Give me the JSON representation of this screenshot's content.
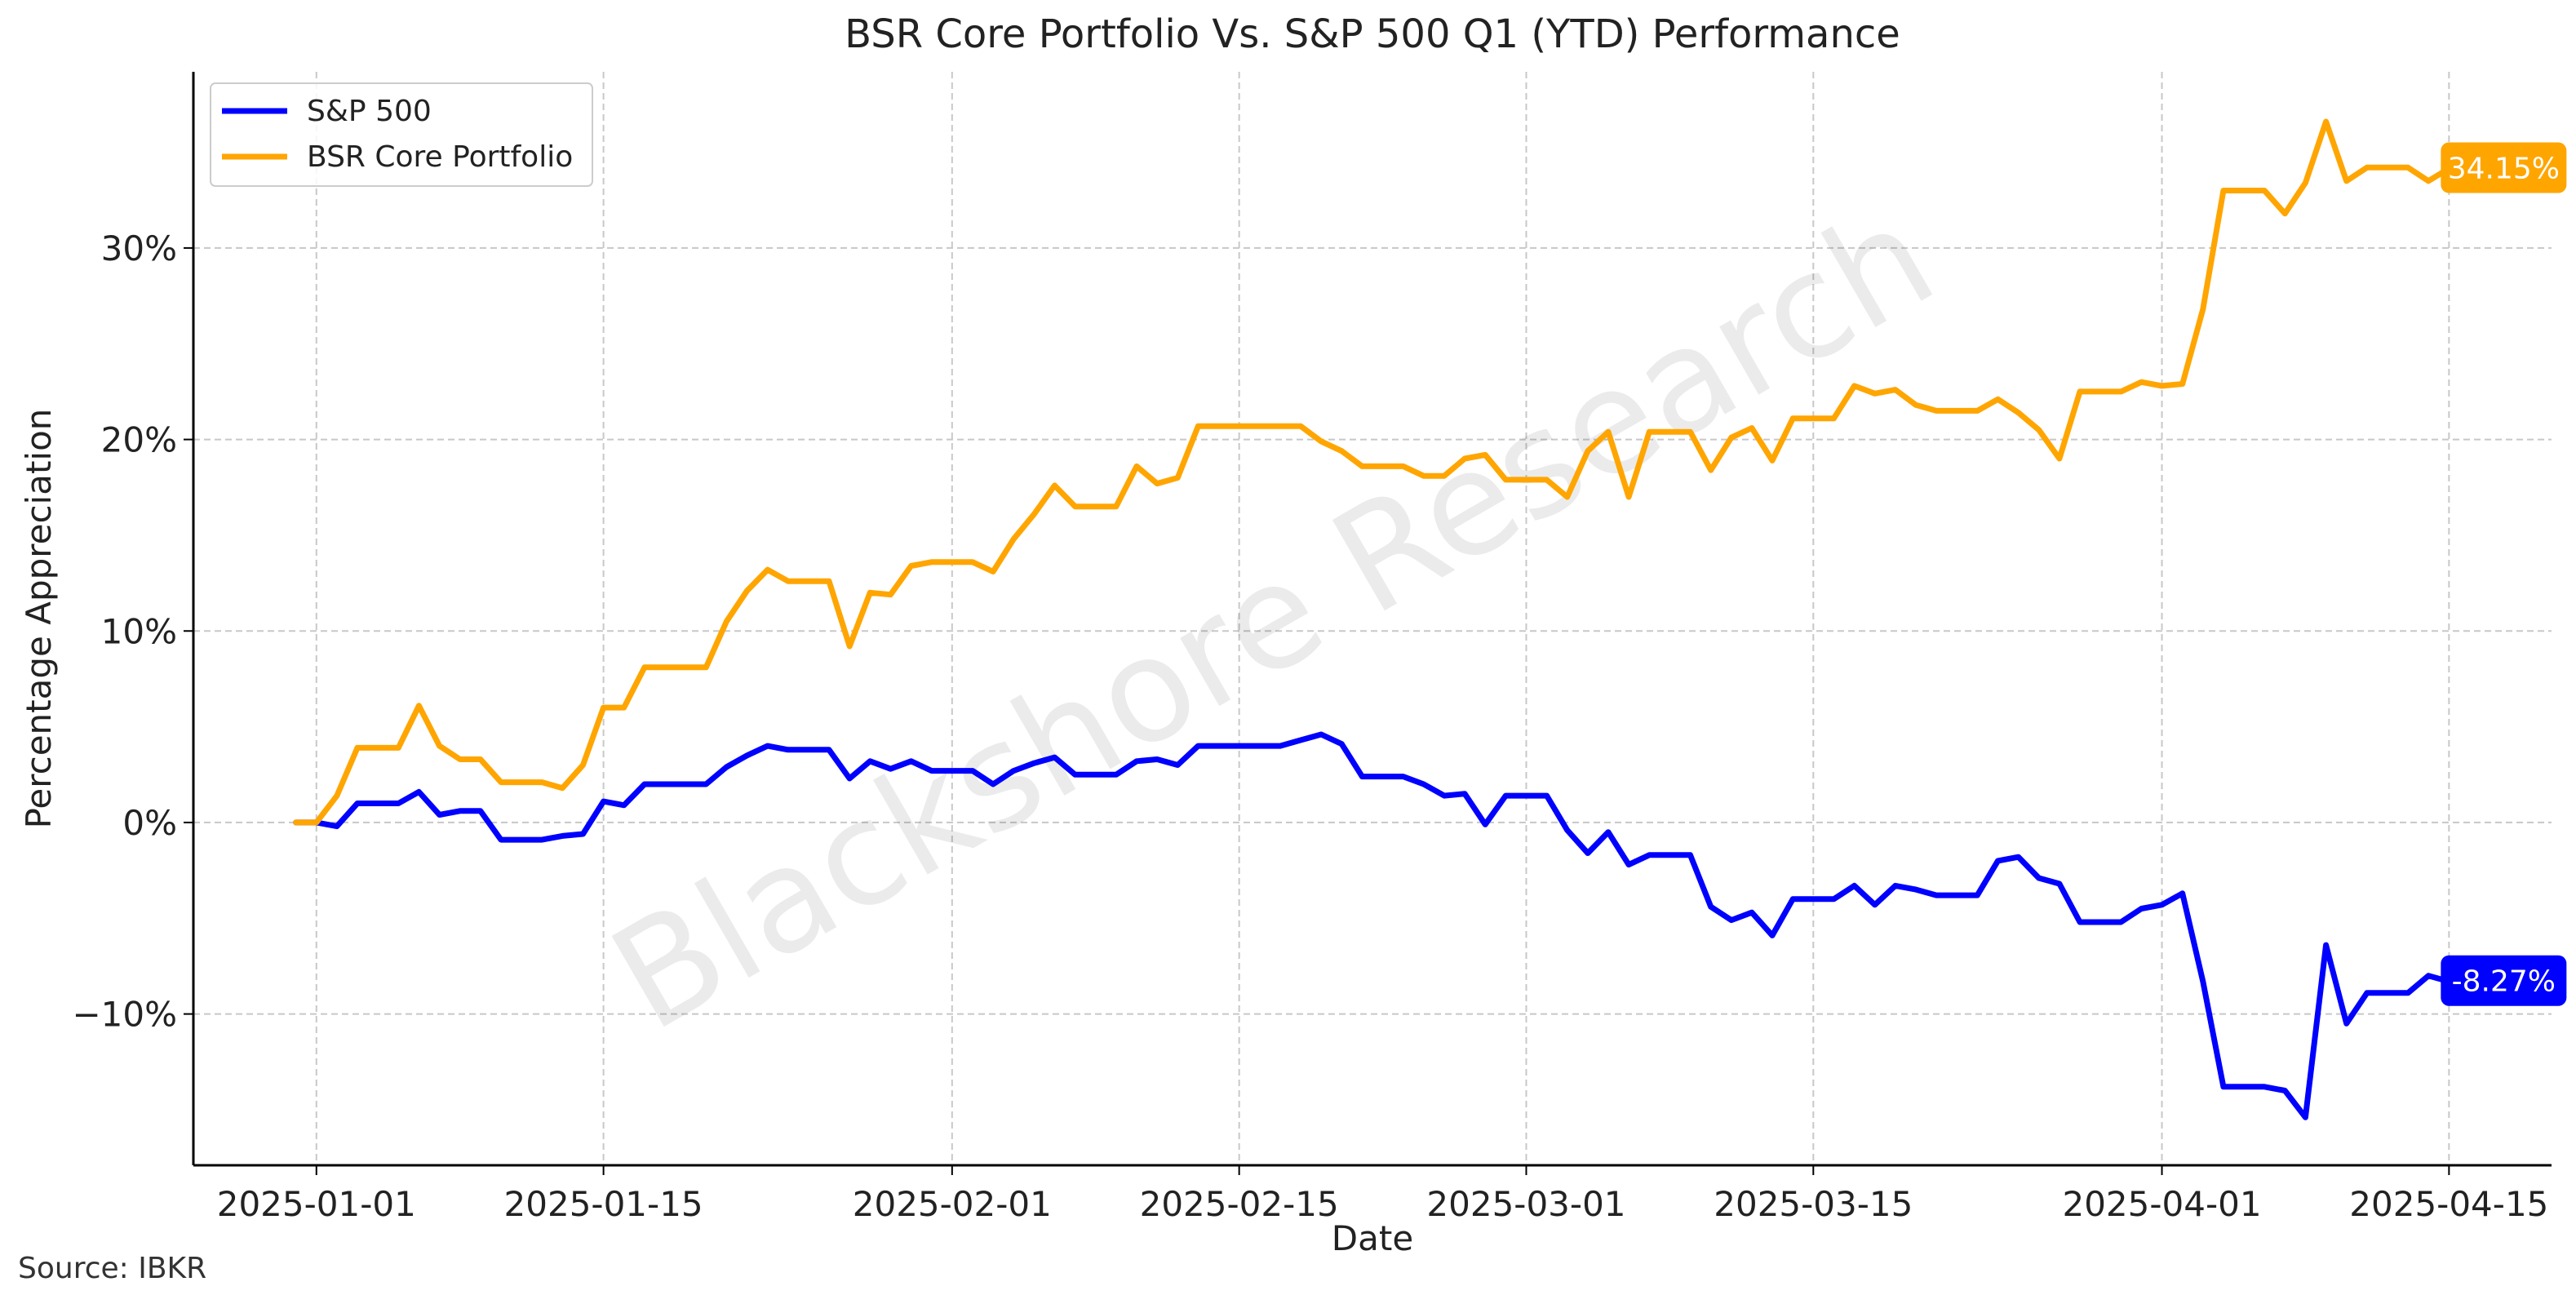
{
  "chart_data": {
    "type": "line",
    "title": "BSR Core Portfolio Vs. S&P 500 Q1 (YTD) Performance",
    "xlabel": "Date",
    "ylabel": "Percentage Appreciation",
    "source_note": "Source: IBKR",
    "watermark": "Blackshore Research",
    "x_ticks": [
      "2025-01-01",
      "2025-01-15",
      "2025-02-01",
      "2025-02-15",
      "2025-03-01",
      "2025-03-15",
      "2025-04-01",
      "2025-04-15"
    ],
    "y_ticks": [
      -10,
      0,
      10,
      20,
      30
    ],
    "y_tick_labels": [
      "−10%",
      "0%",
      "10%",
      "20%",
      "30%"
    ],
    "xlim": [
      "2024-12-26",
      "2025-04-20"
    ],
    "ylim": [
      -17.9,
      39.2
    ],
    "grid": true,
    "legend_position": "top-left",
    "series": [
      {
        "name": "S&P 500",
        "color": "#0000ff",
        "end_label": "-8.27%",
        "points": [
          [
            "2024-12-31",
            0.0
          ],
          [
            "2025-01-01",
            0.0
          ],
          [
            "2025-01-02",
            -0.2
          ],
          [
            "2025-01-03",
            1.0
          ],
          [
            "2025-01-04",
            1.0
          ],
          [
            "2025-01-05",
            1.0
          ],
          [
            "2025-01-06",
            1.6
          ],
          [
            "2025-01-07",
            0.4
          ],
          [
            "2025-01-08",
            0.6
          ],
          [
            "2025-01-09",
            0.6
          ],
          [
            "2025-01-10",
            -0.9
          ],
          [
            "2025-01-11",
            -0.9
          ],
          [
            "2025-01-12",
            -0.9
          ],
          [
            "2025-01-13",
            -0.7
          ],
          [
            "2025-01-14",
            -0.6
          ],
          [
            "2025-01-15",
            1.1
          ],
          [
            "2025-01-16",
            0.9
          ],
          [
            "2025-01-17",
            2.0
          ],
          [
            "2025-01-18",
            2.0
          ],
          [
            "2025-01-19",
            2.0
          ],
          [
            "2025-01-20",
            2.0
          ],
          [
            "2025-01-21",
            2.9
          ],
          [
            "2025-01-22",
            3.5
          ],
          [
            "2025-01-23",
            4.0
          ],
          [
            "2025-01-24",
            3.8
          ],
          [
            "2025-01-25",
            3.8
          ],
          [
            "2025-01-26",
            3.8
          ],
          [
            "2025-01-27",
            2.3
          ],
          [
            "2025-01-28",
            3.2
          ],
          [
            "2025-01-29",
            2.8
          ],
          [
            "2025-01-30",
            3.2
          ],
          [
            "2025-01-31",
            2.7
          ],
          [
            "2025-02-01",
            2.7
          ],
          [
            "2025-02-02",
            2.7
          ],
          [
            "2025-02-03",
            2.0
          ],
          [
            "2025-02-04",
            2.7
          ],
          [
            "2025-02-05",
            3.1
          ],
          [
            "2025-02-06",
            3.4
          ],
          [
            "2025-02-07",
            2.5
          ],
          [
            "2025-02-08",
            2.5
          ],
          [
            "2025-02-09",
            2.5
          ],
          [
            "2025-02-10",
            3.2
          ],
          [
            "2025-02-11",
            3.3
          ],
          [
            "2025-02-12",
            3.0
          ],
          [
            "2025-02-13",
            4.0
          ],
          [
            "2025-02-14",
            4.0
          ],
          [
            "2025-02-15",
            4.0
          ],
          [
            "2025-02-16",
            4.0
          ],
          [
            "2025-02-17",
            4.0
          ],
          [
            "2025-02-18",
            4.3
          ],
          [
            "2025-02-19",
            4.6
          ],
          [
            "2025-02-20",
            4.1
          ],
          [
            "2025-02-21",
            2.4
          ],
          [
            "2025-02-22",
            2.4
          ],
          [
            "2025-02-23",
            2.4
          ],
          [
            "2025-02-24",
            2.0
          ],
          [
            "2025-02-25",
            1.4
          ],
          [
            "2025-02-26",
            1.5
          ],
          [
            "2025-02-27",
            -0.1
          ],
          [
            "2025-02-28",
            1.4
          ],
          [
            "2025-03-01",
            1.4
          ],
          [
            "2025-03-02",
            1.4
          ],
          [
            "2025-03-03",
            -0.4
          ],
          [
            "2025-03-04",
            -1.6
          ],
          [
            "2025-03-05",
            -0.5
          ],
          [
            "2025-03-06",
            -2.2
          ],
          [
            "2025-03-07",
            -1.7
          ],
          [
            "2025-03-08",
            -1.7
          ],
          [
            "2025-03-09",
            -1.7
          ],
          [
            "2025-03-10",
            -4.4
          ],
          [
            "2025-03-11",
            -5.1
          ],
          [
            "2025-03-12",
            -4.7
          ],
          [
            "2025-03-13",
            -5.9
          ],
          [
            "2025-03-14",
            -4.0
          ],
          [
            "2025-03-15",
            -4.0
          ],
          [
            "2025-03-16",
            -4.0
          ],
          [
            "2025-03-17",
            -3.3
          ],
          [
            "2025-03-18",
            -4.3
          ],
          [
            "2025-03-19",
            -3.3
          ],
          [
            "2025-03-20",
            -3.5
          ],
          [
            "2025-03-21",
            -3.8
          ],
          [
            "2025-03-22",
            -3.8
          ],
          [
            "2025-03-23",
            -3.8
          ],
          [
            "2025-03-24",
            -2.0
          ],
          [
            "2025-03-25",
            -1.8
          ],
          [
            "2025-03-26",
            -2.9
          ],
          [
            "2025-03-27",
            -3.2
          ],
          [
            "2025-03-28",
            -5.2
          ],
          [
            "2025-03-29",
            -5.2
          ],
          [
            "2025-03-30",
            -5.2
          ],
          [
            "2025-03-31",
            -4.5
          ],
          [
            "2025-04-01",
            -4.3
          ],
          [
            "2025-04-02",
            -3.7
          ],
          [
            "2025-04-03",
            -8.3
          ],
          [
            "2025-04-04",
            -13.8
          ],
          [
            "2025-04-05",
            -13.8
          ],
          [
            "2025-04-06",
            -13.8
          ],
          [
            "2025-04-07",
            -14.0
          ],
          [
            "2025-04-08",
            -15.4
          ],
          [
            "2025-04-09",
            -6.4
          ],
          [
            "2025-04-10",
            -10.5
          ],
          [
            "2025-04-11",
            -8.9
          ],
          [
            "2025-04-12",
            -8.9
          ],
          [
            "2025-04-13",
            -8.9
          ],
          [
            "2025-04-14",
            -8.0
          ],
          [
            "2025-04-15",
            -8.3
          ]
        ]
      },
      {
        "name": "BSR Core Portfolio",
        "color": "#ffa500",
        "end_label": "34.15%",
        "points": [
          [
            "2024-12-31",
            0.0
          ],
          [
            "2025-01-01",
            0.0
          ],
          [
            "2025-01-02",
            1.4
          ],
          [
            "2025-01-03",
            3.9
          ],
          [
            "2025-01-04",
            3.9
          ],
          [
            "2025-01-05",
            3.9
          ],
          [
            "2025-01-06",
            6.1
          ],
          [
            "2025-01-07",
            4.0
          ],
          [
            "2025-01-08",
            3.3
          ],
          [
            "2025-01-09",
            3.3
          ],
          [
            "2025-01-10",
            2.1
          ],
          [
            "2025-01-11",
            2.1
          ],
          [
            "2025-01-12",
            2.1
          ],
          [
            "2025-01-13",
            1.8
          ],
          [
            "2025-01-14",
            3.0
          ],
          [
            "2025-01-15",
            6.0
          ],
          [
            "2025-01-16",
            6.0
          ],
          [
            "2025-01-17",
            8.1
          ],
          [
            "2025-01-18",
            8.1
          ],
          [
            "2025-01-19",
            8.1
          ],
          [
            "2025-01-20",
            8.1
          ],
          [
            "2025-01-21",
            10.5
          ],
          [
            "2025-01-22",
            12.1
          ],
          [
            "2025-01-23",
            13.2
          ],
          [
            "2025-01-24",
            12.6
          ],
          [
            "2025-01-25",
            12.6
          ],
          [
            "2025-01-26",
            12.6
          ],
          [
            "2025-01-27",
            9.2
          ],
          [
            "2025-01-28",
            12.0
          ],
          [
            "2025-01-29",
            11.9
          ],
          [
            "2025-01-30",
            13.4
          ],
          [
            "2025-01-31",
            13.6
          ],
          [
            "2025-02-01",
            13.6
          ],
          [
            "2025-02-02",
            13.6
          ],
          [
            "2025-02-03",
            13.1
          ],
          [
            "2025-02-04",
            14.8
          ],
          [
            "2025-02-05",
            16.1
          ],
          [
            "2025-02-06",
            17.6
          ],
          [
            "2025-02-07",
            16.5
          ],
          [
            "2025-02-08",
            16.5
          ],
          [
            "2025-02-09",
            16.5
          ],
          [
            "2025-02-10",
            18.6
          ],
          [
            "2025-02-11",
            17.7
          ],
          [
            "2025-02-12",
            18.0
          ],
          [
            "2025-02-13",
            20.7
          ],
          [
            "2025-02-14",
            20.7
          ],
          [
            "2025-02-15",
            20.7
          ],
          [
            "2025-02-16",
            20.7
          ],
          [
            "2025-02-17",
            20.7
          ],
          [
            "2025-02-18",
            20.7
          ],
          [
            "2025-02-19",
            19.9
          ],
          [
            "2025-02-20",
            19.4
          ],
          [
            "2025-02-21",
            18.6
          ],
          [
            "2025-02-22",
            18.6
          ],
          [
            "2025-02-23",
            18.6
          ],
          [
            "2025-02-24",
            18.1
          ],
          [
            "2025-02-25",
            18.1
          ],
          [
            "2025-02-26",
            19.0
          ],
          [
            "2025-02-27",
            19.2
          ],
          [
            "2025-02-28",
            17.9
          ],
          [
            "2025-03-01",
            17.9
          ],
          [
            "2025-03-02",
            17.9
          ],
          [
            "2025-03-03",
            17.0
          ],
          [
            "2025-03-04",
            19.4
          ],
          [
            "2025-03-05",
            20.4
          ],
          [
            "2025-03-06",
            17.0
          ],
          [
            "2025-03-07",
            20.4
          ],
          [
            "2025-03-08",
            20.4
          ],
          [
            "2025-03-09",
            20.4
          ],
          [
            "2025-03-10",
            18.4
          ],
          [
            "2025-03-11",
            20.1
          ],
          [
            "2025-03-12",
            20.6
          ],
          [
            "2025-03-13",
            18.9
          ],
          [
            "2025-03-14",
            21.1
          ],
          [
            "2025-03-15",
            21.1
          ],
          [
            "2025-03-16",
            21.1
          ],
          [
            "2025-03-17",
            22.8
          ],
          [
            "2025-03-18",
            22.4
          ],
          [
            "2025-03-19",
            22.6
          ],
          [
            "2025-03-20",
            21.8
          ],
          [
            "2025-03-21",
            21.5
          ],
          [
            "2025-03-22",
            21.5
          ],
          [
            "2025-03-23",
            21.5
          ],
          [
            "2025-03-24",
            22.1
          ],
          [
            "2025-03-25",
            21.4
          ],
          [
            "2025-03-26",
            20.5
          ],
          [
            "2025-03-27",
            19.0
          ],
          [
            "2025-03-28",
            22.5
          ],
          [
            "2025-03-29",
            22.5
          ],
          [
            "2025-03-30",
            22.5
          ],
          [
            "2025-03-31",
            23.0
          ],
          [
            "2025-04-01",
            22.8
          ],
          [
            "2025-04-02",
            22.9
          ],
          [
            "2025-04-03",
            26.8
          ],
          [
            "2025-04-04",
            33.0
          ],
          [
            "2025-04-05",
            33.0
          ],
          [
            "2025-04-06",
            33.0
          ],
          [
            "2025-04-07",
            31.8
          ],
          [
            "2025-04-08",
            33.4
          ],
          [
            "2025-04-09",
            36.6
          ],
          [
            "2025-04-10",
            33.5
          ],
          [
            "2025-04-11",
            34.2
          ],
          [
            "2025-04-12",
            34.2
          ],
          [
            "2025-04-13",
            34.2
          ],
          [
            "2025-04-14",
            33.5
          ],
          [
            "2025-04-15",
            34.15
          ]
        ]
      }
    ]
  }
}
